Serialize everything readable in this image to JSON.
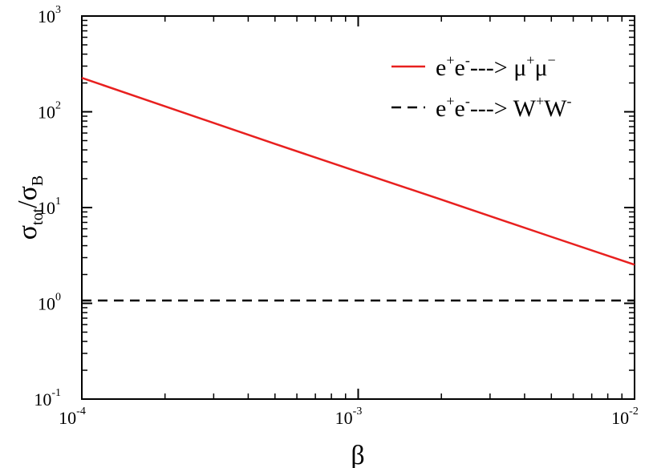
{
  "chart_data": {
    "type": "line",
    "title": "",
    "x_scale": "log",
    "y_scale": "log",
    "xlim": [
      0.0001,
      0.01
    ],
    "ylim": [
      0.1,
      1000
    ],
    "grid": false,
    "legend_position": "top-right",
    "xlabel": "β",
    "ylabel": {
      "main1": "σ",
      "sub1": "tot",
      "slash": "/",
      "main2": "σ",
      "sub2": "B"
    },
    "x_ticks": [
      {
        "value": 0.0001,
        "base": "10",
        "exp": "-4"
      },
      {
        "value": 0.001,
        "base": "10",
        "exp": "-3"
      },
      {
        "value": 0.01,
        "base": "10",
        "exp": "-2"
      }
    ],
    "y_ticks": [
      {
        "value": 0.1,
        "base": "10",
        "exp": "-1"
      },
      {
        "value": 1,
        "base": "10",
        "exp": "0"
      },
      {
        "value": 10,
        "base": "10",
        "exp": "1"
      },
      {
        "value": 100,
        "base": "10",
        "exp": "2"
      },
      {
        "value": 1000,
        "base": "10",
        "exp": "3"
      }
    ],
    "series": [
      {
        "name": "e+e- ---> μ+μ-",
        "legend": {
          "a": "e",
          "sa": "+",
          "b": "e",
          "sb": "-",
          "arrow": "---> ",
          "c": "μ",
          "sc": "+",
          "d": "μ",
          "sd": "−"
        },
        "color": "#e8201f",
        "dash": "solid",
        "x": [
          0.0001,
          0.0002,
          0.0005,
          0.001,
          0.002,
          0.005,
          0.01
        ],
        "y": [
          226,
          114,
          46.2,
          23.6,
          12.1,
          4.95,
          2.53
        ]
      },
      {
        "name": "e+e- ---> W+W-",
        "legend": {
          "a": "e",
          "sa": "+",
          "b": "e",
          "sb": "-",
          "arrow": "---> ",
          "c": "W",
          "sc": "+",
          "d": "W",
          "sd": "-"
        },
        "color": "#000000",
        "dash": "dashed",
        "x": [
          0.0001,
          0.001,
          0.01
        ],
        "y": [
          1.07,
          1.07,
          1.07
        ]
      }
    ]
  }
}
